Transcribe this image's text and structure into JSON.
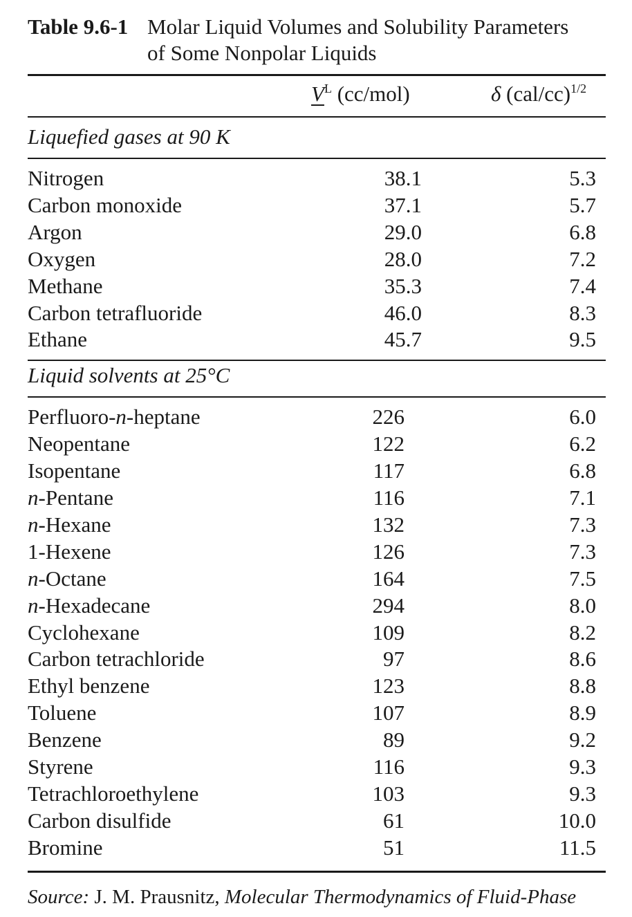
{
  "caption": {
    "number": "Table 9.6-1",
    "title_line1": "Molar Liquid Volumes and Solubility Parameters",
    "title_line2": "of Some Nonpolar Liquids"
  },
  "columns": {
    "volume": {
      "symbol": "V",
      "superscript": "L",
      "unit": "(cc/mol)"
    },
    "solubility": {
      "symbol": "δ",
      "unit": "(cal/cc)",
      "superscript": "1/2"
    }
  },
  "sections": [
    {
      "heading": "Liquefied gases at 90 K",
      "rows": [
        {
          "name": "Nitrogen",
          "volume": "38.1",
          "delta": "5.3"
        },
        {
          "name": "Carbon monoxide",
          "volume": "37.1",
          "delta": "5.7"
        },
        {
          "name": "Argon",
          "volume": "29.0",
          "delta": "6.8"
        },
        {
          "name": "Oxygen",
          "volume": "28.0",
          "delta": "7.2"
        },
        {
          "name": "Methane",
          "volume": "35.3",
          "delta": "7.4"
        },
        {
          "name": "Carbon tetrafluoride",
          "volume": "46.0",
          "delta": "8.3"
        },
        {
          "name": "Ethane",
          "volume": "45.7",
          "delta": "9.5"
        }
      ]
    },
    {
      "heading": "Liquid solvents at 25°C",
      "rows": [
        {
          "prefix": "Perfluoro-",
          "italic": "n",
          "name": "-heptane",
          "volume": "226",
          "delta": "6.0"
        },
        {
          "name": "Neopentane",
          "volume": "122",
          "delta": "6.2"
        },
        {
          "name": "Isopentane",
          "volume": "117",
          "delta": "6.8"
        },
        {
          "italic": "n",
          "name": "-Pentane",
          "volume": "116",
          "delta": "7.1"
        },
        {
          "italic": "n",
          "name": "-Hexane",
          "volume": "132",
          "delta": "7.3"
        },
        {
          "name": "1-Hexene",
          "volume": "126",
          "delta": "7.3"
        },
        {
          "italic": "n",
          "name": "-Octane",
          "volume": "164",
          "delta": "7.5"
        },
        {
          "italic": "n",
          "name": "-Hexadecane",
          "volume": "294",
          "delta": "8.0"
        },
        {
          "name": "Cyclohexane",
          "volume": "109",
          "delta": "8.2"
        },
        {
          "name": "Carbon tetrachloride",
          "volume": "97",
          "delta": "8.6"
        },
        {
          "name": "Ethyl benzene",
          "volume": "123",
          "delta": "8.8"
        },
        {
          "name": "Toluene",
          "volume": "107",
          "delta": "8.9"
        },
        {
          "name": "Benzene",
          "volume": "89",
          "delta": "9.2"
        },
        {
          "name": "Styrene",
          "volume": "116",
          "delta": "9.3"
        },
        {
          "name": "Tetrachloroethylene",
          "volume": "103",
          "delta": "9.3"
        },
        {
          "name": "Carbon disulfide",
          "volume": "61",
          "delta": "10.0"
        },
        {
          "name": "Bromine",
          "volume": "51",
          "delta": "11.5"
        }
      ]
    }
  ],
  "source": {
    "label": "Source:",
    "author": "J. M. Prausnitz,",
    "work": "Molecular Thermodynamics of Fluid-Phase"
  }
}
